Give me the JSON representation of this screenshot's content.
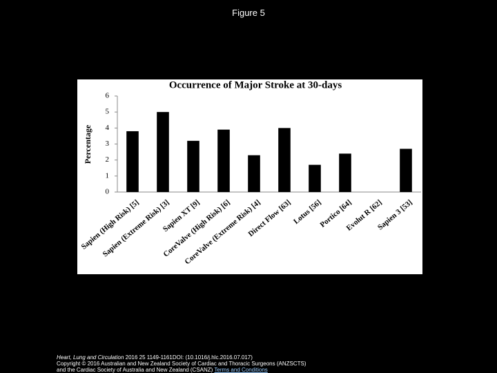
{
  "figure_label": "Figure 5",
  "chart_data": {
    "type": "bar",
    "title": "Occurrence of Major Stroke at 30-days",
    "y_label": "Percentage",
    "categories": [
      "Sapien (High Risk) [5]",
      "Sapien (Extreme Risk) [3]",
      "Sapien XT [9]",
      "CoreValve (High Risk) [6]",
      "CoreValve (Extreme Risk) [4]",
      "Direct Flow [63]",
      "Lotus [56]",
      "Portico [64]",
      "Evolut R [62]",
      "Sapien 3 [53]"
    ],
    "values": [
      3.8,
      5.0,
      3.2,
      3.9,
      2.3,
      4.0,
      1.7,
      2.4,
      0,
      2.7
    ],
    "color": "#000000",
    "ylim": [
      0,
      6
    ],
    "yticks": [
      0,
      1,
      2,
      3,
      4,
      5,
      6
    ],
    "grid": false
  },
  "footer": {
    "journal": "Heart, Lung and Circulation",
    "citation": " 2016 25 1149-1161DOI: (10.1016/j.hlc.2016.07.017)",
    "copyright": "Copyright © 2016 Australian and New Zealand Society of Cardiac and Thoracic Surgeons (ANZSCTS)",
    "copyright2": "and the Cardiac Society of Australia and New Zealand (CSANZ) ",
    "link": "Terms and Conditions"
  }
}
